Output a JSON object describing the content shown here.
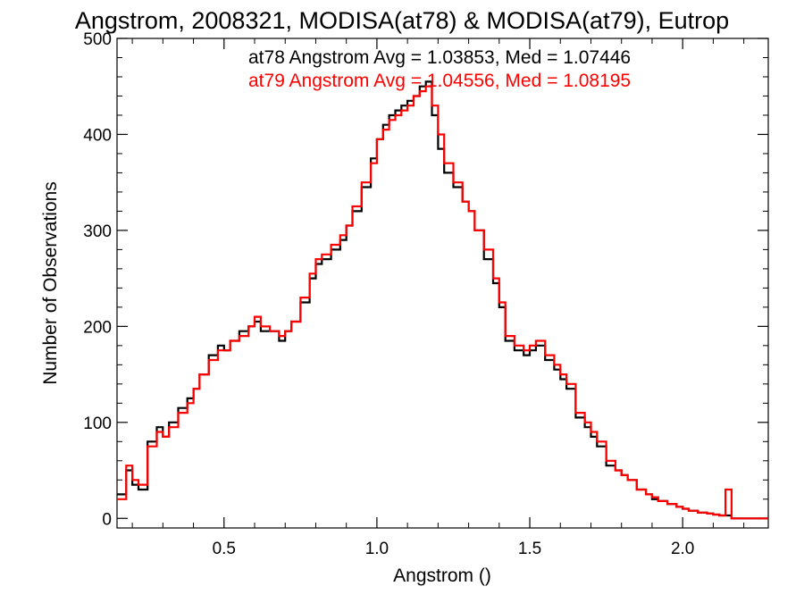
{
  "chart_data": {
    "type": "line",
    "style": "step-histogram",
    "title": "Angstrom, 2008321, MODISA(at78) & MODISA(at79), Eutrop",
    "xlabel": "Angstrom ()",
    "ylabel": "Number of Observations",
    "xlim": [
      0.15,
      2.28
    ],
    "ylim": [
      -10,
      500
    ],
    "x_ticks": [
      {
        "value": 0.5,
        "label": "0.5"
      },
      {
        "value": 1.0,
        "label": "1.0"
      },
      {
        "value": 1.5,
        "label": "1.5"
      },
      {
        "value": 2.0,
        "label": "2.0"
      }
    ],
    "y_ticks": [
      {
        "value": 0,
        "label": "0"
      },
      {
        "value": 100,
        "label": "100"
      },
      {
        "value": 200,
        "label": "200"
      },
      {
        "value": 300,
        "label": "300"
      },
      {
        "value": 400,
        "label": "400"
      },
      {
        "value": 500,
        "label": "500"
      }
    ],
    "grid": false,
    "legend_position": "top-right",
    "series": [
      {
        "name": "at78 Angstrom Avg = 1.03853, Med = 1.07446",
        "color": "#000000",
        "x": [
          0.15,
          0.18,
          0.2,
          0.22,
          0.25,
          0.28,
          0.3,
          0.32,
          0.35,
          0.38,
          0.4,
          0.42,
          0.45,
          0.48,
          0.5,
          0.52,
          0.55,
          0.58,
          0.6,
          0.62,
          0.65,
          0.68,
          0.7,
          0.72,
          0.75,
          0.78,
          0.8,
          0.82,
          0.85,
          0.88,
          0.9,
          0.92,
          0.95,
          0.98,
          1.0,
          1.02,
          1.04,
          1.06,
          1.08,
          1.1,
          1.12,
          1.14,
          1.16,
          1.18,
          1.2,
          1.22,
          1.25,
          1.28,
          1.3,
          1.32,
          1.35,
          1.38,
          1.4,
          1.42,
          1.45,
          1.48,
          1.5,
          1.52,
          1.55,
          1.58,
          1.6,
          1.62,
          1.65,
          1.68,
          1.7,
          1.72,
          1.75,
          1.78,
          1.8,
          1.82,
          1.85,
          1.88,
          1.9,
          1.92,
          1.95,
          1.98,
          2.0,
          2.02,
          2.05,
          2.08,
          2.1,
          2.12,
          2.14,
          2.16,
          2.18,
          2.2,
          2.25
        ],
        "values": [
          25,
          50,
          35,
          30,
          80,
          95,
          85,
          100,
          115,
          125,
          135,
          150,
          170,
          180,
          175,
          185,
          195,
          200,
          205,
          195,
          195,
          185,
          195,
          205,
          225,
          250,
          265,
          270,
          280,
          290,
          305,
          320,
          345,
          375,
          395,
          410,
          420,
          425,
          430,
          435,
          440,
          450,
          455,
          420,
          385,
          360,
          345,
          330,
          320,
          300,
          270,
          245,
          220,
          185,
          175,
          170,
          175,
          180,
          165,
          155,
          145,
          135,
          105,
          95,
          85,
          75,
          55,
          50,
          45,
          40,
          30,
          25,
          20,
          18,
          15,
          12,
          10,
          8,
          6,
          5,
          4,
          3,
          3,
          0,
          0,
          0,
          0
        ]
      },
      {
        "name": "at79 Angstrom Avg = 1.04556, Med = 1.08195",
        "color": "#ff0000",
        "x": [
          0.15,
          0.18,
          0.2,
          0.22,
          0.25,
          0.28,
          0.3,
          0.32,
          0.35,
          0.38,
          0.4,
          0.42,
          0.45,
          0.48,
          0.5,
          0.52,
          0.55,
          0.58,
          0.6,
          0.62,
          0.65,
          0.68,
          0.7,
          0.72,
          0.75,
          0.78,
          0.8,
          0.82,
          0.85,
          0.88,
          0.9,
          0.92,
          0.95,
          0.98,
          1.0,
          1.02,
          1.04,
          1.06,
          1.08,
          1.1,
          1.12,
          1.14,
          1.16,
          1.18,
          1.2,
          1.22,
          1.25,
          1.28,
          1.3,
          1.32,
          1.35,
          1.38,
          1.4,
          1.42,
          1.45,
          1.48,
          1.5,
          1.52,
          1.55,
          1.58,
          1.6,
          1.62,
          1.65,
          1.68,
          1.7,
          1.72,
          1.75,
          1.78,
          1.8,
          1.82,
          1.85,
          1.88,
          1.9,
          1.92,
          1.95,
          1.98,
          2.0,
          2.02,
          2.05,
          2.08,
          2.1,
          2.12,
          2.14,
          2.16,
          2.18,
          2.2,
          2.25
        ],
        "values": [
          20,
          55,
          40,
          35,
          75,
          90,
          85,
          95,
          110,
          120,
          135,
          150,
          165,
          175,
          175,
          185,
          190,
          200,
          210,
          200,
          195,
          190,
          195,
          205,
          230,
          255,
          270,
          275,
          285,
          295,
          305,
          325,
          350,
          370,
          395,
          405,
          415,
          420,
          425,
          430,
          440,
          445,
          450,
          430,
          400,
          370,
          350,
          330,
          320,
          300,
          280,
          250,
          225,
          190,
          180,
          175,
          180,
          185,
          170,
          160,
          150,
          140,
          110,
          100,
          90,
          80,
          60,
          50,
          45,
          40,
          30,
          25,
          22,
          18,
          15,
          12,
          10,
          8,
          6,
          5,
          4,
          3,
          30,
          0,
          0,
          0,
          0
        ]
      }
    ]
  }
}
